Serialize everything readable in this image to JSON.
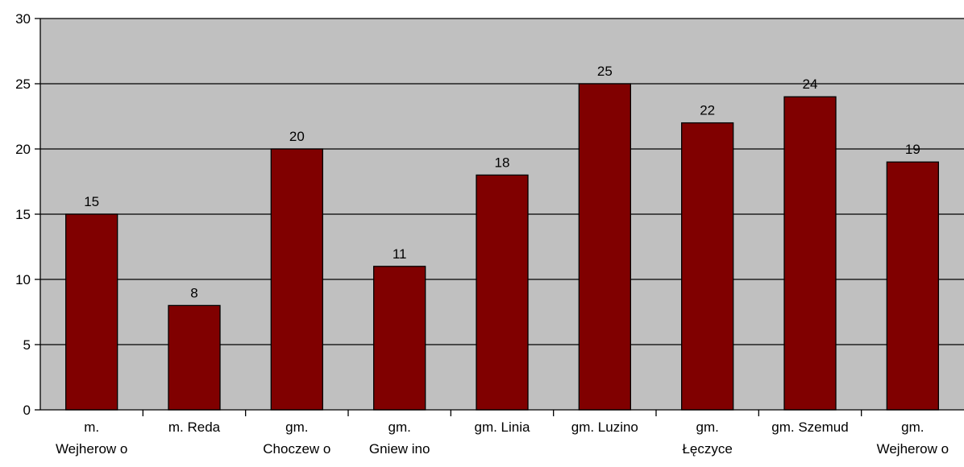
{
  "chart_data": {
    "type": "bar",
    "categories": [
      [
        "m.",
        "Wejherow o"
      ],
      [
        "m. Reda"
      ],
      [
        "gm.",
        "Choczew o"
      ],
      [
        "gm.",
        "Gniew ino"
      ],
      [
        "gm. Linia"
      ],
      [
        "gm. Luzino"
      ],
      [
        "gm.",
        "Łęczyce"
      ],
      [
        "gm. Szemud"
      ],
      [
        "gm.",
        "Wejherow o"
      ]
    ],
    "values": [
      15,
      8,
      20,
      11,
      18,
      25,
      22,
      24,
      19
    ],
    "ylim": [
      0,
      30
    ],
    "yticks": [
      0,
      5,
      10,
      15,
      20,
      25,
      30
    ],
    "grid": true,
    "title": "",
    "xlabel": "",
    "ylabel": "",
    "colors": {
      "plot_background": "#c0c0c0",
      "bar_fill": "#800000",
      "bar_stroke": "#000000",
      "gridline": "#000000"
    }
  }
}
